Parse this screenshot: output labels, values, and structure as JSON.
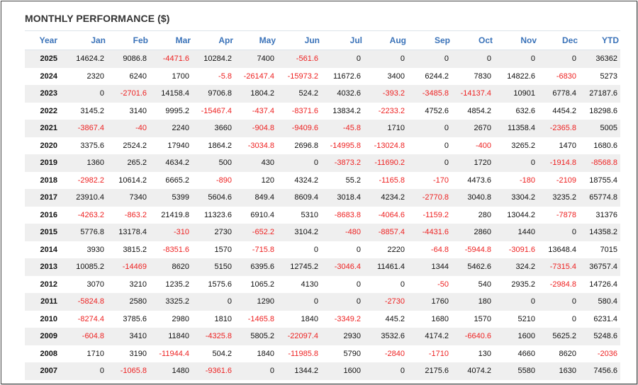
{
  "title": "MONTHLY PERFORMANCE ($)",
  "colors": {
    "header_text": "#3b73b9",
    "negative": "#ee2222",
    "positive": "#111111",
    "stripe": "#efefef"
  },
  "chart_data": {
    "type": "table",
    "title": "MONTHLY PERFORMANCE ($)",
    "columns": [
      "Year",
      "Jan",
      "Feb",
      "Mar",
      "Apr",
      "May",
      "Jun",
      "Jul",
      "Aug",
      "Sep",
      "Oct",
      "Nov",
      "Dec",
      "YTD"
    ],
    "rows": [
      [
        "2025",
        "14624.2",
        "9086.8",
        "-4471.6",
        "10284.2",
        "7400",
        "-561.6",
        "0",
        "0",
        "0",
        "0",
        "0",
        "0",
        "36362"
      ],
      [
        "2024",
        "2320",
        "6240",
        "1700",
        "-5.8",
        "-26147.4",
        "-15973.2",
        "11672.6",
        "3400",
        "6244.2",
        "7830",
        "14822.6",
        "-6830",
        "5273"
      ],
      [
        "2023",
        "0",
        "-2701.6",
        "14158.4",
        "9706.8",
        "1804.2",
        "524.2",
        "4032.6",
        "-393.2",
        "-3485.8",
        "-14137.4",
        "10901",
        "6778.4",
        "27187.6"
      ],
      [
        "2022",
        "3145.2",
        "3140",
        "9995.2",
        "-15467.4",
        "-437.4",
        "-8371.6",
        "13834.2",
        "-2233.2",
        "4752.6",
        "4854.2",
        "632.6",
        "4454.2",
        "18298.6"
      ],
      [
        "2021",
        "-3867.4",
        "-40",
        "2240",
        "3660",
        "-904.8",
        "-9409.6",
        "-45.8",
        "1710",
        "0",
        "2670",
        "11358.4",
        "-2365.8",
        "5005"
      ],
      [
        "2020",
        "3375.6",
        "2524.2",
        "17940",
        "1864.2",
        "-3034.8",
        "2696.8",
        "-14995.8",
        "-13024.8",
        "0",
        "-400",
        "3265.2",
        "1470",
        "1680.6"
      ],
      [
        "2019",
        "1360",
        "265.2",
        "4634.2",
        "500",
        "430",
        "0",
        "-3873.2",
        "-11690.2",
        "0",
        "1720",
        "0",
        "-1914.8",
        "-8568.8"
      ],
      [
        "2018",
        "-2982.2",
        "10614.2",
        "6665.2",
        "-890",
        "120",
        "4324.2",
        "55.2",
        "-1165.8",
        "-170",
        "4473.6",
        "-180",
        "-2109",
        "18755.4"
      ],
      [
        "2017",
        "23910.4",
        "7340",
        "5399",
        "5604.6",
        "849.4",
        "8609.4",
        "3018.4",
        "4234.2",
        "-2770.8",
        "3040.8",
        "3304.2",
        "3235.2",
        "65774.8"
      ],
      [
        "2016",
        "-4263.2",
        "-863.2",
        "21419.8",
        "11323.6",
        "6910.4",
        "5310",
        "-8683.8",
        "-4064.6",
        "-1159.2",
        "280",
        "13044.2",
        "-7878",
        "31376"
      ],
      [
        "2015",
        "5776.8",
        "13178.4",
        "-310",
        "2730",
        "-652.2",
        "3104.2",
        "-480",
        "-8857.4",
        "-4431.6",
        "2860",
        "1440",
        "0",
        "14358.2"
      ],
      [
        "2014",
        "3930",
        "3815.2",
        "-8351.6",
        "1570",
        "-715.8",
        "0",
        "0",
        "2220",
        "-64.8",
        "-5944.8",
        "-3091.6",
        "13648.4",
        "7015"
      ],
      [
        "2013",
        "10085.2",
        "-14469",
        "8620",
        "5150",
        "6395.6",
        "12745.2",
        "-3046.4",
        "11461.4",
        "1344",
        "5462.6",
        "324.2",
        "-7315.4",
        "36757.4"
      ],
      [
        "2012",
        "3070",
        "3210",
        "1235.2",
        "1575.6",
        "1065.2",
        "4130",
        "0",
        "0",
        "-50",
        "540",
        "2935.2",
        "-2984.8",
        "14726.4"
      ],
      [
        "2011",
        "-5824.8",
        "2580",
        "3325.2",
        "0",
        "1290",
        "0",
        "0",
        "-2730",
        "1760",
        "180",
        "0",
        "0",
        "580.4"
      ],
      [
        "2010",
        "-8274.4",
        "3785.6",
        "2980",
        "1810",
        "-1465.8",
        "1840",
        "-3349.2",
        "445.2",
        "1680",
        "1570",
        "5210",
        "0",
        "6231.4"
      ],
      [
        "2009",
        "-604.8",
        "3410",
        "11840",
        "-4325.8",
        "5805.2",
        "-22097.4",
        "2930",
        "3532.6",
        "4174.2",
        "-6640.6",
        "1600",
        "5625.2",
        "5248.6"
      ],
      [
        "2008",
        "1710",
        "3190",
        "-11944.4",
        "504.2",
        "1840",
        "-11985.8",
        "5790",
        "-2840",
        "-1710",
        "130",
        "4660",
        "8620",
        "-2036"
      ],
      [
        "2007",
        "0",
        "-1065.8",
        "1480",
        "-9361.6",
        "0",
        "1344.2",
        "1600",
        "0",
        "2175.6",
        "4074.2",
        "5580",
        "1630",
        "7456.6"
      ]
    ]
  }
}
